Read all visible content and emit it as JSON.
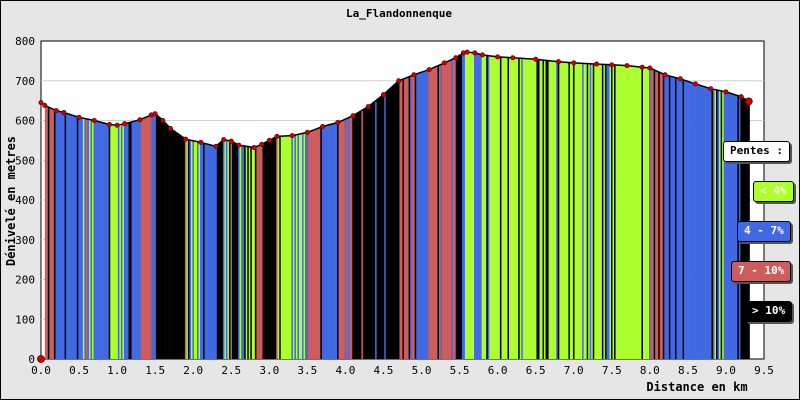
{
  "chart_data": {
    "type": "area",
    "title": "La_Flandonnenque",
    "xlabel": "Distance en km",
    "ylabel": "Dénivelé en metres",
    "xlim": [
      0,
      9.5
    ],
    "ylim": [
      0,
      800
    ],
    "x_ticks": [
      "0.0",
      "0.5",
      "1.0",
      "1.5",
      "2.0",
      "2.5",
      "3.0",
      "3.5",
      "4.0",
      "4.5",
      "5.0",
      "5.5",
      "6.0",
      "6.5",
      "7.0",
      "7.5",
      "8.0",
      "8.5",
      "9.0",
      "9.5"
    ],
    "y_ticks": [
      "0",
      "100",
      "200",
      "300",
      "400",
      "500",
      "600",
      "700",
      "800"
    ],
    "grid": "horizontal",
    "legend": {
      "title": "Pentes :",
      "placement": "right",
      "items": [
        {
          "label": "< 4%",
          "color": "#adff2f",
          "text_color": "#ffffff"
        },
        {
          "label": "4 - 7%",
          "color": "#4169e1",
          "text_color": "#ffffff"
        },
        {
          "label": "7 - 10%",
          "color": "#cd5c5c",
          "text_color": "#ffffff"
        },
        {
          "label": "> 10%",
          "color": "#000000",
          "text_color": "#ffffff"
        }
      ]
    },
    "series": [
      {
        "x": [
          0.0,
          0.05,
          0.2,
          0.3,
          0.5,
          0.7,
          0.9,
          1.0,
          1.1,
          1.3,
          1.45,
          1.5,
          1.6,
          1.7,
          1.9,
          2.1,
          2.3,
          2.4,
          2.5,
          2.6,
          2.8,
          2.9,
          3.0,
          3.1,
          3.3,
          3.5,
          3.7,
          3.9,
          4.1,
          4.3,
          4.5,
          4.7,
          4.9,
          5.1,
          5.3,
          5.45,
          5.55,
          5.6,
          5.7,
          5.8,
          6.0,
          6.2,
          6.5,
          6.8,
          7.0,
          7.3,
          7.5,
          7.7,
          7.9,
          8.0,
          8.2,
          8.4,
          8.6,
          8.8,
          9.0,
          9.2,
          9.3
        ],
        "y": [
          645,
          638,
          625,
          620,
          608,
          600,
          590,
          588,
          592,
          602,
          614,
          617,
          600,
          580,
          553,
          545,
          535,
          552,
          548,
          538,
          532,
          540,
          550,
          560,
          562,
          570,
          585,
          595,
          612,
          635,
          665,
          700,
          715,
          728,
          745,
          758,
          770,
          772,
          770,
          765,
          760,
          758,
          754,
          748,
          745,
          742,
          740,
          738,
          734,
          732,
          715,
          705,
          692,
          680,
          672,
          660,
          648
        ]
      }
    ]
  },
  "legend_text": "Pentes :"
}
